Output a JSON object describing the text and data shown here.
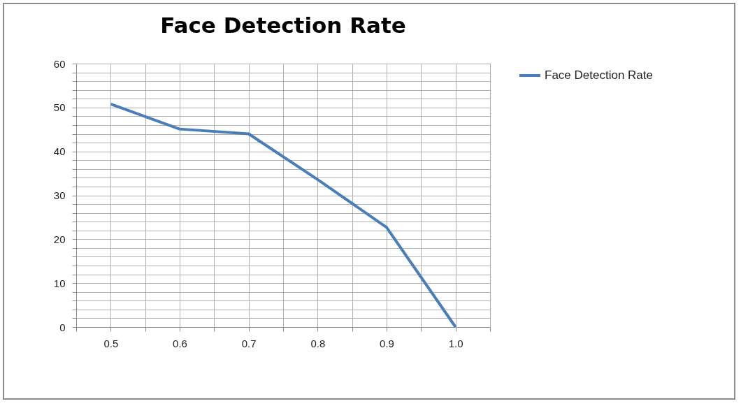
{
  "chart_data": {
    "type": "line",
    "title": "Face Detection Rate",
    "x": [
      0.5,
      0.6,
      0.7,
      0.8,
      0.9,
      1.0
    ],
    "series": [
      {
        "name": "Face Detection Rate",
        "color": "#4a7ebb",
        "values": [
          50.8,
          45.1,
          44.0,
          33.6,
          22.7,
          0
        ]
      }
    ],
    "xlim": [
      0.45,
      1.05
    ],
    "xticks": [
      {
        "value": 0.45,
        "label": null
      },
      0.5,
      {
        "value": 0.55,
        "label": null
      },
      0.6,
      {
        "value": 0.65,
        "label": null
      },
      0.7,
      {
        "value": 0.75,
        "label": null
      },
      0.8,
      {
        "value": 0.85,
        "label": null
      },
      0.9,
      {
        "value": 0.95,
        "label": null
      },
      {
        "value": 1.0,
        "label": "1.0"
      },
      {
        "value": 1.05,
        "label": null
      }
    ],
    "ylim": [
      0,
      60
    ],
    "yticks": [
      0,
      {
        "value": 2,
        "label": null
      },
      {
        "value": 4,
        "label": null
      },
      {
        "value": 6,
        "label": null
      },
      {
        "value": 8,
        "label": null
      },
      10,
      {
        "value": 12,
        "label": null
      },
      {
        "value": 14,
        "label": null
      },
      {
        "value": 16,
        "label": null
      },
      {
        "value": 18,
        "label": null
      },
      20,
      {
        "value": 22,
        "label": null
      },
      {
        "value": 24,
        "label": null
      },
      {
        "value": 26,
        "label": null
      },
      {
        "value": 28,
        "label": null
      },
      30,
      {
        "value": 32,
        "label": null
      },
      {
        "value": 34,
        "label": null
      },
      {
        "value": 36,
        "label": null
      },
      {
        "value": 38,
        "label": null
      },
      40,
      {
        "value": 42,
        "label": null
      },
      {
        "value": 44,
        "label": null
      },
      {
        "value": 46,
        "label": null
      },
      {
        "value": 48,
        "label": null
      },
      50,
      {
        "value": 52,
        "label": null
      },
      {
        "value": 54,
        "label": null
      },
      {
        "value": 56,
        "label": null
      },
      {
        "value": 58,
        "label": null
      },
      60
    ],
    "grid": true,
    "legend": "right",
    "marker": "none",
    "line_style": "solid"
  }
}
